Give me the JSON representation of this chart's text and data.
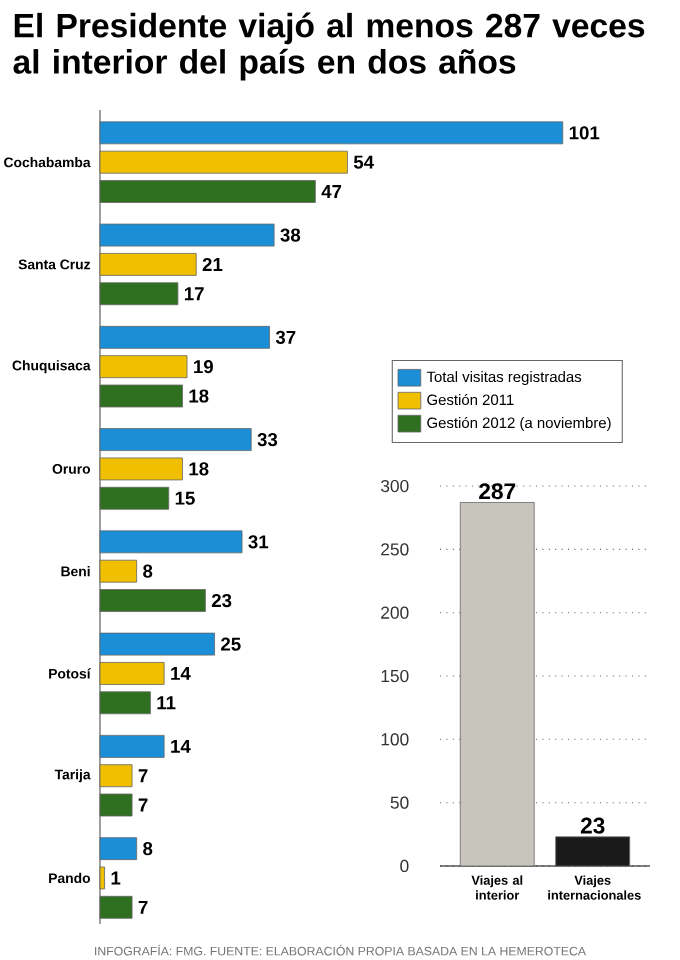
{
  "chart_data": [
    {
      "type": "bar",
      "orientation": "horizontal",
      "title": "El Presidente viajó al menos 287 veces al interior del país en dos años",
      "categories": [
        "Cochabamba",
        "Santa Cruz",
        "Chuquisaca",
        "Oruro",
        "Beni",
        "Potosí",
        "Tarija",
        "Pando"
      ],
      "series": [
        {
          "name": "Total visitas registradas",
          "color": "#1a8fd8",
          "values": [
            101,
            38,
            37,
            33,
            31,
            25,
            14,
            8
          ]
        },
        {
          "name": "Gestión 2011",
          "color": "#f0c000",
          "values": [
            54,
            21,
            19,
            18,
            8,
            14,
            7,
            1
          ]
        },
        {
          "name": "Gestión 2012 (a noviembre)",
          "color": "#2f7020",
          "values": [
            47,
            17,
            18,
            15,
            23,
            11,
            7,
            7
          ]
        }
      ],
      "data_labels": true,
      "legend": "right",
      "tick_labels": "y",
      "annotations": [
        "INFOGRAFÍA: FMG. FUENTE: ELABORACIÓN PROPIA BASADA EN LA HEMEROTECA"
      ]
    },
    {
      "type": "bar",
      "categories": [
        "Viajes al interior",
        "Viajes internacionales"
      ],
      "values": [
        287,
        23
      ],
      "colors": [
        "#c8c6bc",
        "#1a1a1a"
      ],
      "ylim": [
        0,
        300
      ],
      "yticks": [
        0,
        50,
        100,
        150,
        200,
        250,
        300
      ],
      "grid": "y",
      "data_labels": true
    }
  ]
}
